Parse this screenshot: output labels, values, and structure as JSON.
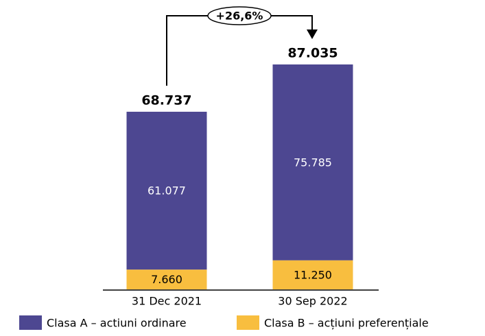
{
  "chart_data": {
    "type": "stacked_bar",
    "categories": [
      "31 Dec 2021",
      "30 Sep 2022"
    ],
    "series": [
      {
        "name": "Clasa A – actiuni ordinare",
        "color": "#4d4791",
        "values": [
          61077,
          75785
        ],
        "value_labels": [
          "61.077",
          "75.785"
        ]
      },
      {
        "name": "Clasa B – acțiuni preferențiale",
        "color": "#f8be3f",
        "values": [
          7660,
          11250
        ],
        "value_labels": [
          "7.660",
          "11.250"
        ]
      }
    ],
    "totals": {
      "values": [
        68737,
        87035
      ],
      "value_labels": [
        "68.737",
        "87.035"
      ]
    },
    "annotation": "+26,6%"
  }
}
